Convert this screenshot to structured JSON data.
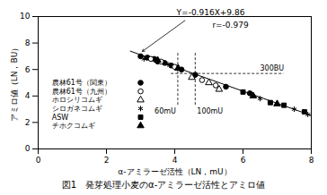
{
  "chart_data": {
    "type": "scatter",
    "x_label": "α-アミラーゼ活性（LN，mU）",
    "y_label": "アミロ値（LN，BU）",
    "caption": "図1　発芽処理小麦のα-アミラーゼ活性とアミロ値",
    "xlim": [
      0,
      8
    ],
    "ylim": [
      0,
      10
    ],
    "xticks": [
      0,
      2,
      4,
      6,
      8
    ],
    "yticks": [
      0,
      2,
      4,
      6,
      8,
      10
    ],
    "legend": "left",
    "series": [
      {
        "name": "農林61号（関東）",
        "color": "#000000",
        "marker": "circle",
        "x": [
          3.0,
          3.2,
          3.4,
          3.5,
          3.7,
          3.9,
          4.2,
          4.6,
          5.5,
          6.2
        ],
        "values": [
          7.0,
          6.9,
          6.8,
          6.6,
          6.5,
          6.3,
          6.0,
          5.6,
          4.7,
          4.2
        ]
      },
      {
        "name": "農林61号（九州）",
        "color": "#000000",
        "marker": "circle-open",
        "x": [
          3.3,
          3.6,
          4.0,
          4.8,
          5.2
        ],
        "values": [
          6.8,
          6.6,
          6.2,
          5.2,
          4.8
        ]
      },
      {
        "name": "ホロシリコムギ",
        "color": "#000000",
        "marker": "triangle-open",
        "x": [
          4.5,
          5.0,
          5.3
        ],
        "values": [
          5.4,
          5.0,
          4.5
        ]
      },
      {
        "name": "シロガネコムギ",
        "color": "#000000",
        "marker": "asterisk",
        "x": [
          3.1,
          3.8,
          6.5,
          7.5,
          7.9
        ],
        "values": [
          6.8,
          6.4,
          3.8,
          3.0,
          2.6
        ]
      },
      {
        "name": "ASW",
        "color": "#000000",
        "marker": "square",
        "x": [
          6.0,
          6.8,
          7.2,
          7.8
        ],
        "values": [
          4.3,
          3.5,
          3.3,
          2.8
        ]
      },
      {
        "name": "チホクコムギ",
        "color": "#000000",
        "marker": "triangle",
        "x": [
          3.5,
          4.1,
          6.3,
          7.0
        ],
        "values": [
          6.7,
          6.1,
          4.0,
          3.4
        ]
      }
    ],
    "fit": {
      "label": "Y=-0.916X+9.86",
      "r_label": "r=-0.979",
      "slope": -0.916,
      "intercept": 9.86,
      "x": [
        2.7,
        8.0
      ]
    },
    "reference_lines": [
      {
        "x": 4.09,
        "label": "60mU",
        "y_range": [
          3.3,
          7.3
        ]
      },
      {
        "x": 4.6,
        "label": "100mU",
        "y_range": [
          3.3,
          7.3
        ]
      },
      {
        "y": 5.7,
        "label": "300BU",
        "x_range": [
          3.9,
          7.2
        ]
      }
    ]
  }
}
